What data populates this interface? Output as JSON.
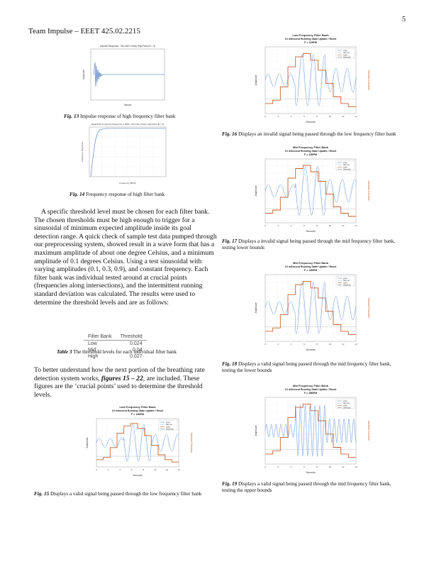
{
  "page": {
    "number": "5",
    "header": "Team Impulse – EEET 425.02.2215"
  },
  "fig13": {
    "title": "Impulse Response - 9th order Cheby High Pass (R = 3)",
    "xlabel": "Sample",
    "ylabel": "Amplitude",
    "caption_label": "Fig. 13",
    "caption": " Impulse response of high frequency filter bank"
  },
  "fig14": {
    "title": "Magnitude Frequency Response in BPM - 9th order Cheby High Pass (R = 3)",
    "xlabel": "Frequency (BPM)",
    "ylabel": "Frequency Response",
    "caption_label": "Fig. 14",
    "caption": " Frequency response of high filter bank"
  },
  "paragraph1": "A specific threshold level must be chosen for each filter bank. The chosen thresholds must be high enough to trigger for a sinusoidal of minimum expected amplitude inside its goal detection range. A quick check of sample test data pumped through our preprocessing system, showed result in a wave form that has a maximum amplitude of about one degree Celsius, and a minimum amplitude of 0.1 degrees Celsius. Using a test sinusoidal with varying amplitudes (0.1, 0.3, 0.9), and constant frequency. Each filter bank was individual tested around at crucial points (frequencies along intersections), and the intermittent running standard deviation was calculated. The results were used to determine the threshold levels and are as follows:",
  "table3": {
    "headers": [
      "Filter Bank",
      "Threshold"
    ],
    "rows": [
      [
        "Low",
        "0.024"
      ],
      [
        "Mid",
        "0.04"
      ],
      [
        "High",
        "0.027"
      ]
    ],
    "caption_label": "Table 3",
    "caption": " The threshold levels for each individual filter bank"
  },
  "paragraph2_a": "To better understand how the next portion of the breathing rate detection system works, ",
  "paragraph2_b": "figures 15 – 22",
  "paragraph2_c": ", are included. These figures are the ‘crucial points’ used to determine the threshold levels.",
  "plots": [
    {
      "id": "fig15",
      "title1": "Low Frequency Filter Bank",
      "title2": "10 mSecond Running State Update / Reset",
      "title3": "F = 11BPM",
      "caption_label": "Fig. 15",
      "caption": " Displays a valid signal being passed through the low frequency filter bank"
    },
    {
      "id": "fig16",
      "title1": "Low Frequency Filter Bank",
      "title2": "10 mSecond Running State Update / Reset",
      "title3": "F = 128PM",
      "caption_label": "Fig. 16",
      "caption": "  Displays an invalid signal being passed through the low frequency filter bank"
    },
    {
      "id": "fig17",
      "title1": "Mid Frequency Filter Bank",
      "title2": "10 mSecond Running State Update / Reset",
      "title3": "F = 11BPM",
      "caption_label": "Fig. 17",
      "caption": " Displays a invalid signal being passed through the mid frequency filter bank, testing lower bounds"
    },
    {
      "id": "fig18",
      "title1": "Mid Frequency Filter Bank",
      "title2": "10 mSecond Running State Update / Reset",
      "title3": "F = 12BPM",
      "caption_label": "Fig. 18",
      "caption": " Displays a valid signal being passed through the mid frequency filter bank, testing the lower bounds"
    },
    {
      "id": "fig19",
      "title1": "Mid Frequency Filter Bank",
      "title2": "10 mSecond Running State Update / Reset",
      "title3": "F = 28BPM",
      "caption_label": "Fig. 19",
      "caption": " Displays a valid signal being passed through the mid frequency filter bank, testing the upper bounds"
    }
  ],
  "plot_common": {
    "xlabel": "Seconds",
    "ylabel": "Amplitude",
    "y2label": "Standard Deviation",
    "legend": [
      "empi",
      "filter out",
      "stdev",
      "threshold"
    ],
    "xticks": [
      "0",
      "2",
      "4",
      "6",
      "8",
      "10",
      "12",
      "14"
    ]
  },
  "colors": {
    "signal": "#5b8fd6",
    "filtered": "#9bbbe6",
    "stdev": "#c8602a",
    "threshold": "#888888"
  }
}
